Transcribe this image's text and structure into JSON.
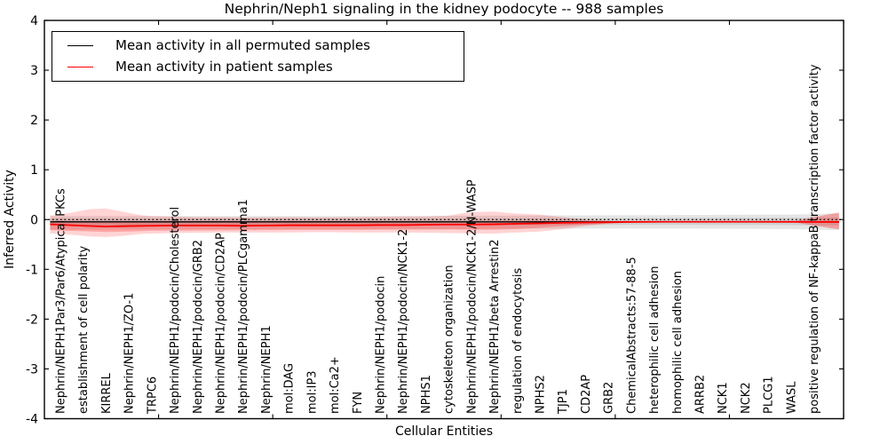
{
  "figure": {
    "title": "Nephrin/Neph1 signaling in the kidney podocyte -- 988 samples",
    "xlabel": "Cellular Entities",
    "ylabel": "Inferred Activity"
  },
  "legend": {
    "entries": [
      {
        "label": "Mean activity in all permuted samples",
        "color": "#000000"
      },
      {
        "label": "Mean activity in patient samples",
        "color": "#ff0000"
      }
    ]
  },
  "chart_data": {
    "type": "line",
    "title": "Nephrin/Neph1 signaling in the kidney podocyte -- 988 samples",
    "xlabel": "Cellular Entities",
    "ylabel": "Inferred Activity",
    "xlim": [
      0,
      35
    ],
    "ylim": [
      -4,
      4
    ],
    "grid": false,
    "legend_position": "upper left",
    "yticks": [
      {
        "v": 4,
        "label": "4"
      },
      {
        "v": 3,
        "label": "3"
      },
      {
        "v": 2,
        "label": "2"
      },
      {
        "v": 1,
        "label": "1"
      },
      {
        "v": 0,
        "label": "0"
      },
      {
        "v": -1,
        "label": "-1"
      },
      {
        "v": -2,
        "label": "-2"
      },
      {
        "v": -3,
        "label": "-3"
      },
      {
        "v": -4,
        "label": "-4"
      }
    ],
    "xticks": [
      5,
      10,
      15,
      20,
      25,
      30,
      35
    ],
    "categories_x0": 0.7,
    "categories": [
      "Nephrin/NEPH1Par3/Par6/Atypical PKCs",
      "establishment of cell polarity",
      "KIRREL",
      "Nephrin/NEPH1/ZO-1",
      "TRPC6",
      "Nephrin/NEPH1/podocin/Cholesterol",
      "Nephrin/NEPH1/podocin/GRB2",
      "Nephrin/NEPH1/podocin/CD2AP",
      "Nephrin/NEPH1/podocin/PLCgamma1",
      "Nephrin/NEPH1",
      "mol:DAG",
      "mol:IP3",
      "mol:Ca2+",
      "FYN",
      "Nephrin/NEPH1/podocin",
      "Nephrin/NEPH1/podocin/NCK1-2",
      "NPHS1",
      "cytoskeleton organization",
      "Nephrin/NEPH1/podocin/NCK1-2/N-WASP",
      "Nephrin/NEPH1/beta Arrestin2",
      "regulation of endocytosis",
      "NPHS2",
      "TJP1",
      "CD2AP",
      "GRB2",
      "ChemicalAbstracts:57-88-5",
      "heterophilic cell adhesion",
      "homophilic cell adhesion",
      "ARRB2",
      "NCK1",
      "NCK2",
      "PLCG1",
      "WASL",
      "positive regulation of NF-kappaB transcription factor activity"
    ],
    "zero_line": {
      "y": 0,
      "style": "dotted",
      "color": "#000000"
    },
    "bands": [
      {
        "name": "permuted-range-outer",
        "color": "#aaaaaa",
        "alpha": 0.3,
        "x": [
          0.25,
          3,
          6,
          10,
          14,
          18,
          21,
          24,
          27,
          30,
          32.5,
          33.7,
          34.4,
          34.8
        ],
        "hi": [
          0.07,
          0.07,
          0.07,
          0.07,
          0.07,
          0.075,
          0.08,
          0.085,
          0.09,
          0.095,
          0.1,
          0.11,
          0.12,
          0.12
        ],
        "lo": [
          -0.2,
          -0.2,
          -0.195,
          -0.19,
          -0.19,
          -0.19,
          -0.185,
          -0.18,
          -0.18,
          -0.185,
          -0.19,
          -0.2,
          -0.21,
          -0.21
        ]
      },
      {
        "name": "permuted-range-inner",
        "color": "#9a9a9a",
        "alpha": 0.3,
        "x": [
          0.25,
          10,
          20,
          27,
          32,
          34.8
        ],
        "hi": [
          0.02,
          0.02,
          0.025,
          0.03,
          0.035,
          0.04
        ],
        "lo": [
          -0.115,
          -0.115,
          -0.11,
          -0.105,
          -0.11,
          -0.115
        ]
      },
      {
        "name": "patient-range-outer",
        "color": "#ff0000",
        "alpha": 0.17,
        "x": [
          0.25,
          0.7,
          1.3,
          2.0,
          2.7,
          3.4,
          4.2,
          4.7,
          5.7,
          6.7,
          7.7,
          8.7,
          9.7,
          10.7,
          11.7,
          12.7,
          13.7,
          14.7,
          15.7,
          16.7,
          17.7,
          18.2,
          18.7,
          19.7,
          20.4,
          20.7,
          21.7,
          22.7,
          23.7,
          24.7,
          25.7,
          26.4
        ],
        "hi": [
          0.08,
          0.1,
          0.15,
          0.21,
          0.22,
          0.16,
          0.09,
          0.07,
          0.06,
          0.05,
          0.05,
          0.045,
          0.045,
          0.05,
          0.045,
          0.045,
          0.05,
          0.055,
          0.06,
          0.06,
          0.08,
          0.12,
          0.15,
          0.16,
          0.13,
          0.12,
          0.1,
          0.05,
          0.0,
          -0.03,
          -0.042,
          -0.046
        ],
        "lo": [
          -0.28,
          -0.29,
          -0.31,
          -0.34,
          -0.35,
          -0.33,
          -0.29,
          -0.28,
          -0.27,
          -0.265,
          -0.26,
          -0.26,
          -0.26,
          -0.26,
          -0.255,
          -0.255,
          -0.26,
          -0.26,
          -0.26,
          -0.265,
          -0.27,
          -0.275,
          -0.28,
          -0.28,
          -0.265,
          -0.26,
          -0.24,
          -0.19,
          -0.13,
          -0.085,
          -0.058,
          -0.05
        ]
      },
      {
        "name": "patient-range-inner",
        "color": "#ff0000",
        "alpha": 0.22,
        "x": [
          0.25,
          0.7,
          1.7,
          2.7,
          3.7,
          4.7,
          6.7,
          8.7,
          10.7,
          12.7,
          14.7,
          16.7,
          17.7,
          18.7,
          19.7,
          20.7,
          21.7,
          22.7,
          23.7,
          24.7,
          25.7,
          26.4
        ],
        "hi": [
          -0.035,
          -0.04,
          -0.05,
          -0.06,
          -0.055,
          -0.05,
          -0.05,
          -0.05,
          -0.05,
          -0.048,
          -0.046,
          -0.044,
          -0.04,
          -0.038,
          -0.036,
          -0.03,
          -0.025,
          -0.025,
          -0.03,
          -0.036,
          -0.042,
          -0.046
        ],
        "lo": [
          -0.215,
          -0.22,
          -0.235,
          -0.25,
          -0.24,
          -0.225,
          -0.22,
          -0.215,
          -0.21,
          -0.21,
          -0.205,
          -0.2,
          -0.2,
          -0.205,
          -0.205,
          -0.19,
          -0.165,
          -0.13,
          -0.1,
          -0.075,
          -0.058,
          -0.05
        ]
      },
      {
        "name": "patient-range-right",
        "color": "#ff0000",
        "alpha": 0.3,
        "x": [
          32.8,
          33.7,
          34.4,
          34.8
        ],
        "hi": [
          -0.042,
          0.05,
          0.11,
          0.14
        ],
        "lo": [
          -0.052,
          -0.12,
          -0.17,
          -0.195
        ]
      }
    ],
    "series": [
      {
        "name": "Mean activity in all permuted samples",
        "color": "#000000",
        "width": 1.4,
        "x": [
          0.25,
          34.8
        ],
        "y": [
          -0.045,
          -0.045
        ]
      },
      {
        "name": "Mean activity in patient samples",
        "color": "#ff0000",
        "width": 1.8,
        "x": [
          0.25,
          0.7,
          1.7,
          2.7,
          3.7,
          4.7,
          5.7,
          6.7,
          7.7,
          8.7,
          9.7,
          10.7,
          11.7,
          12.7,
          13.7,
          14.7,
          15.7,
          16.7,
          17.7,
          18.7,
          19.7,
          20.7,
          21.7,
          22.7,
          23.7,
          24.7,
          25.7,
          27,
          29,
          31,
          33,
          33.7,
          34.8
        ],
        "y": [
          -0.095,
          -0.105,
          -0.125,
          -0.14,
          -0.13,
          -0.125,
          -0.12,
          -0.12,
          -0.12,
          -0.125,
          -0.12,
          -0.115,
          -0.115,
          -0.115,
          -0.115,
          -0.11,
          -0.11,
          -0.105,
          -0.1,
          -0.1,
          -0.095,
          -0.085,
          -0.075,
          -0.065,
          -0.058,
          -0.052,
          -0.048,
          -0.045,
          -0.045,
          -0.045,
          -0.046,
          -0.048,
          -0.048
        ]
      }
    ]
  }
}
